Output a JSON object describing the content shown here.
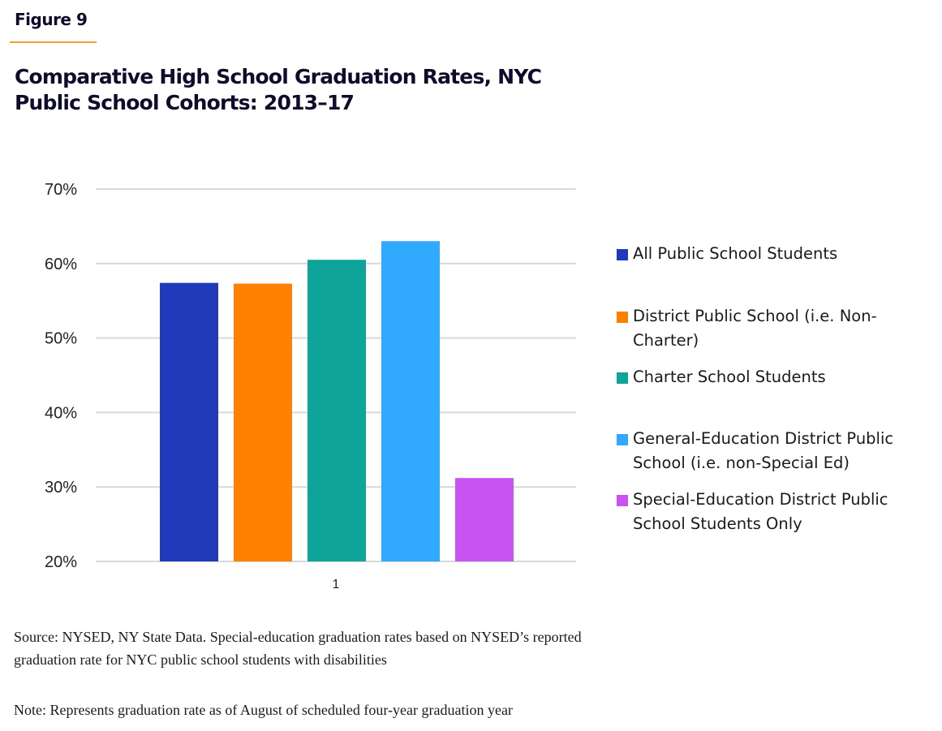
{
  "figure_label": "Figure 9",
  "colors": {
    "accent_rule": "#f0a030",
    "gridline": "#d9d9d9",
    "title_text": "#0d0d2b"
  },
  "chart_data": {
    "type": "bar",
    "title": "Comparative High School Graduation Rates, NYC Public School Cohorts: 2013–17",
    "xlabel": "",
    "ylabel": "",
    "categories": [
      "1"
    ],
    "ylim": [
      20,
      70
    ],
    "yticks": [
      20,
      30,
      40,
      50,
      60,
      70
    ],
    "ytick_labels": [
      "20%",
      "30%",
      "40%",
      "50%",
      "60%",
      "70%"
    ],
    "grid": true,
    "legend_position": "right",
    "series": [
      {
        "name": "All Public School Students",
        "values": [
          57.4
        ],
        "color": "#2139bb"
      },
      {
        "name": "District Public School (i.e. Non-Charter)",
        "values": [
          57.3
        ],
        "color": "#ff8000"
      },
      {
        "name": "Charter School Students",
        "values": [
          60.5
        ],
        "color": "#0ea499"
      },
      {
        "name": "General-Education District Public School (i.e. non-Special Ed)",
        "values": [
          63.0
        ],
        "color": "#31a9ff"
      },
      {
        "name": "Special-Education District Public School Students Only",
        "values": [
          31.2
        ],
        "color": "#c852f2"
      }
    ]
  },
  "legend": {
    "items": [
      {
        "line1": "All Public School Students",
        "line2": ""
      },
      {
        "line1": "District Public School (i.e. Non-",
        "line2": "Charter)"
      },
      {
        "line1": "Charter School Students",
        "line2": ""
      },
      {
        "line1": "General-Education District Public",
        "line2": "School (i.e. non-Special Ed)"
      },
      {
        "line1": "Special-Education District Public",
        "line2": "School Students Only"
      }
    ]
  },
  "source": "Source: NYSED, NY State Data. Special-education graduation rates based on NYSED’s reported graduation rate for NYC public school students with disabilities",
  "note": "Note: Represents graduation rate as of August of scheduled four-year graduation year"
}
